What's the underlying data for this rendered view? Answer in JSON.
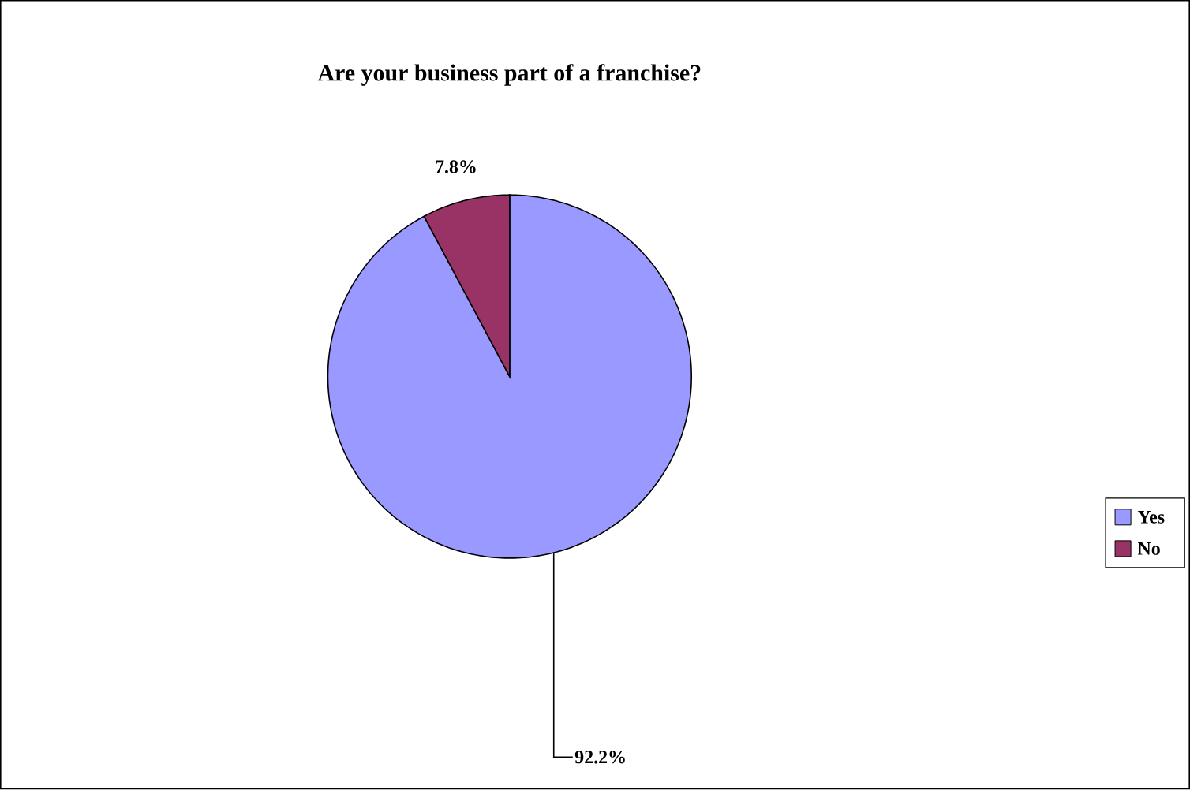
{
  "chart_data": {
    "type": "pie",
    "title": "Are your business part of a franchise?",
    "categories": [
      "Yes",
      "No"
    ],
    "values": [
      92.2,
      7.8
    ],
    "value_labels": [
      "92.2%",
      "7.8%"
    ],
    "colors": [
      "#9999ff",
      "#993366"
    ],
    "legend": "right"
  }
}
